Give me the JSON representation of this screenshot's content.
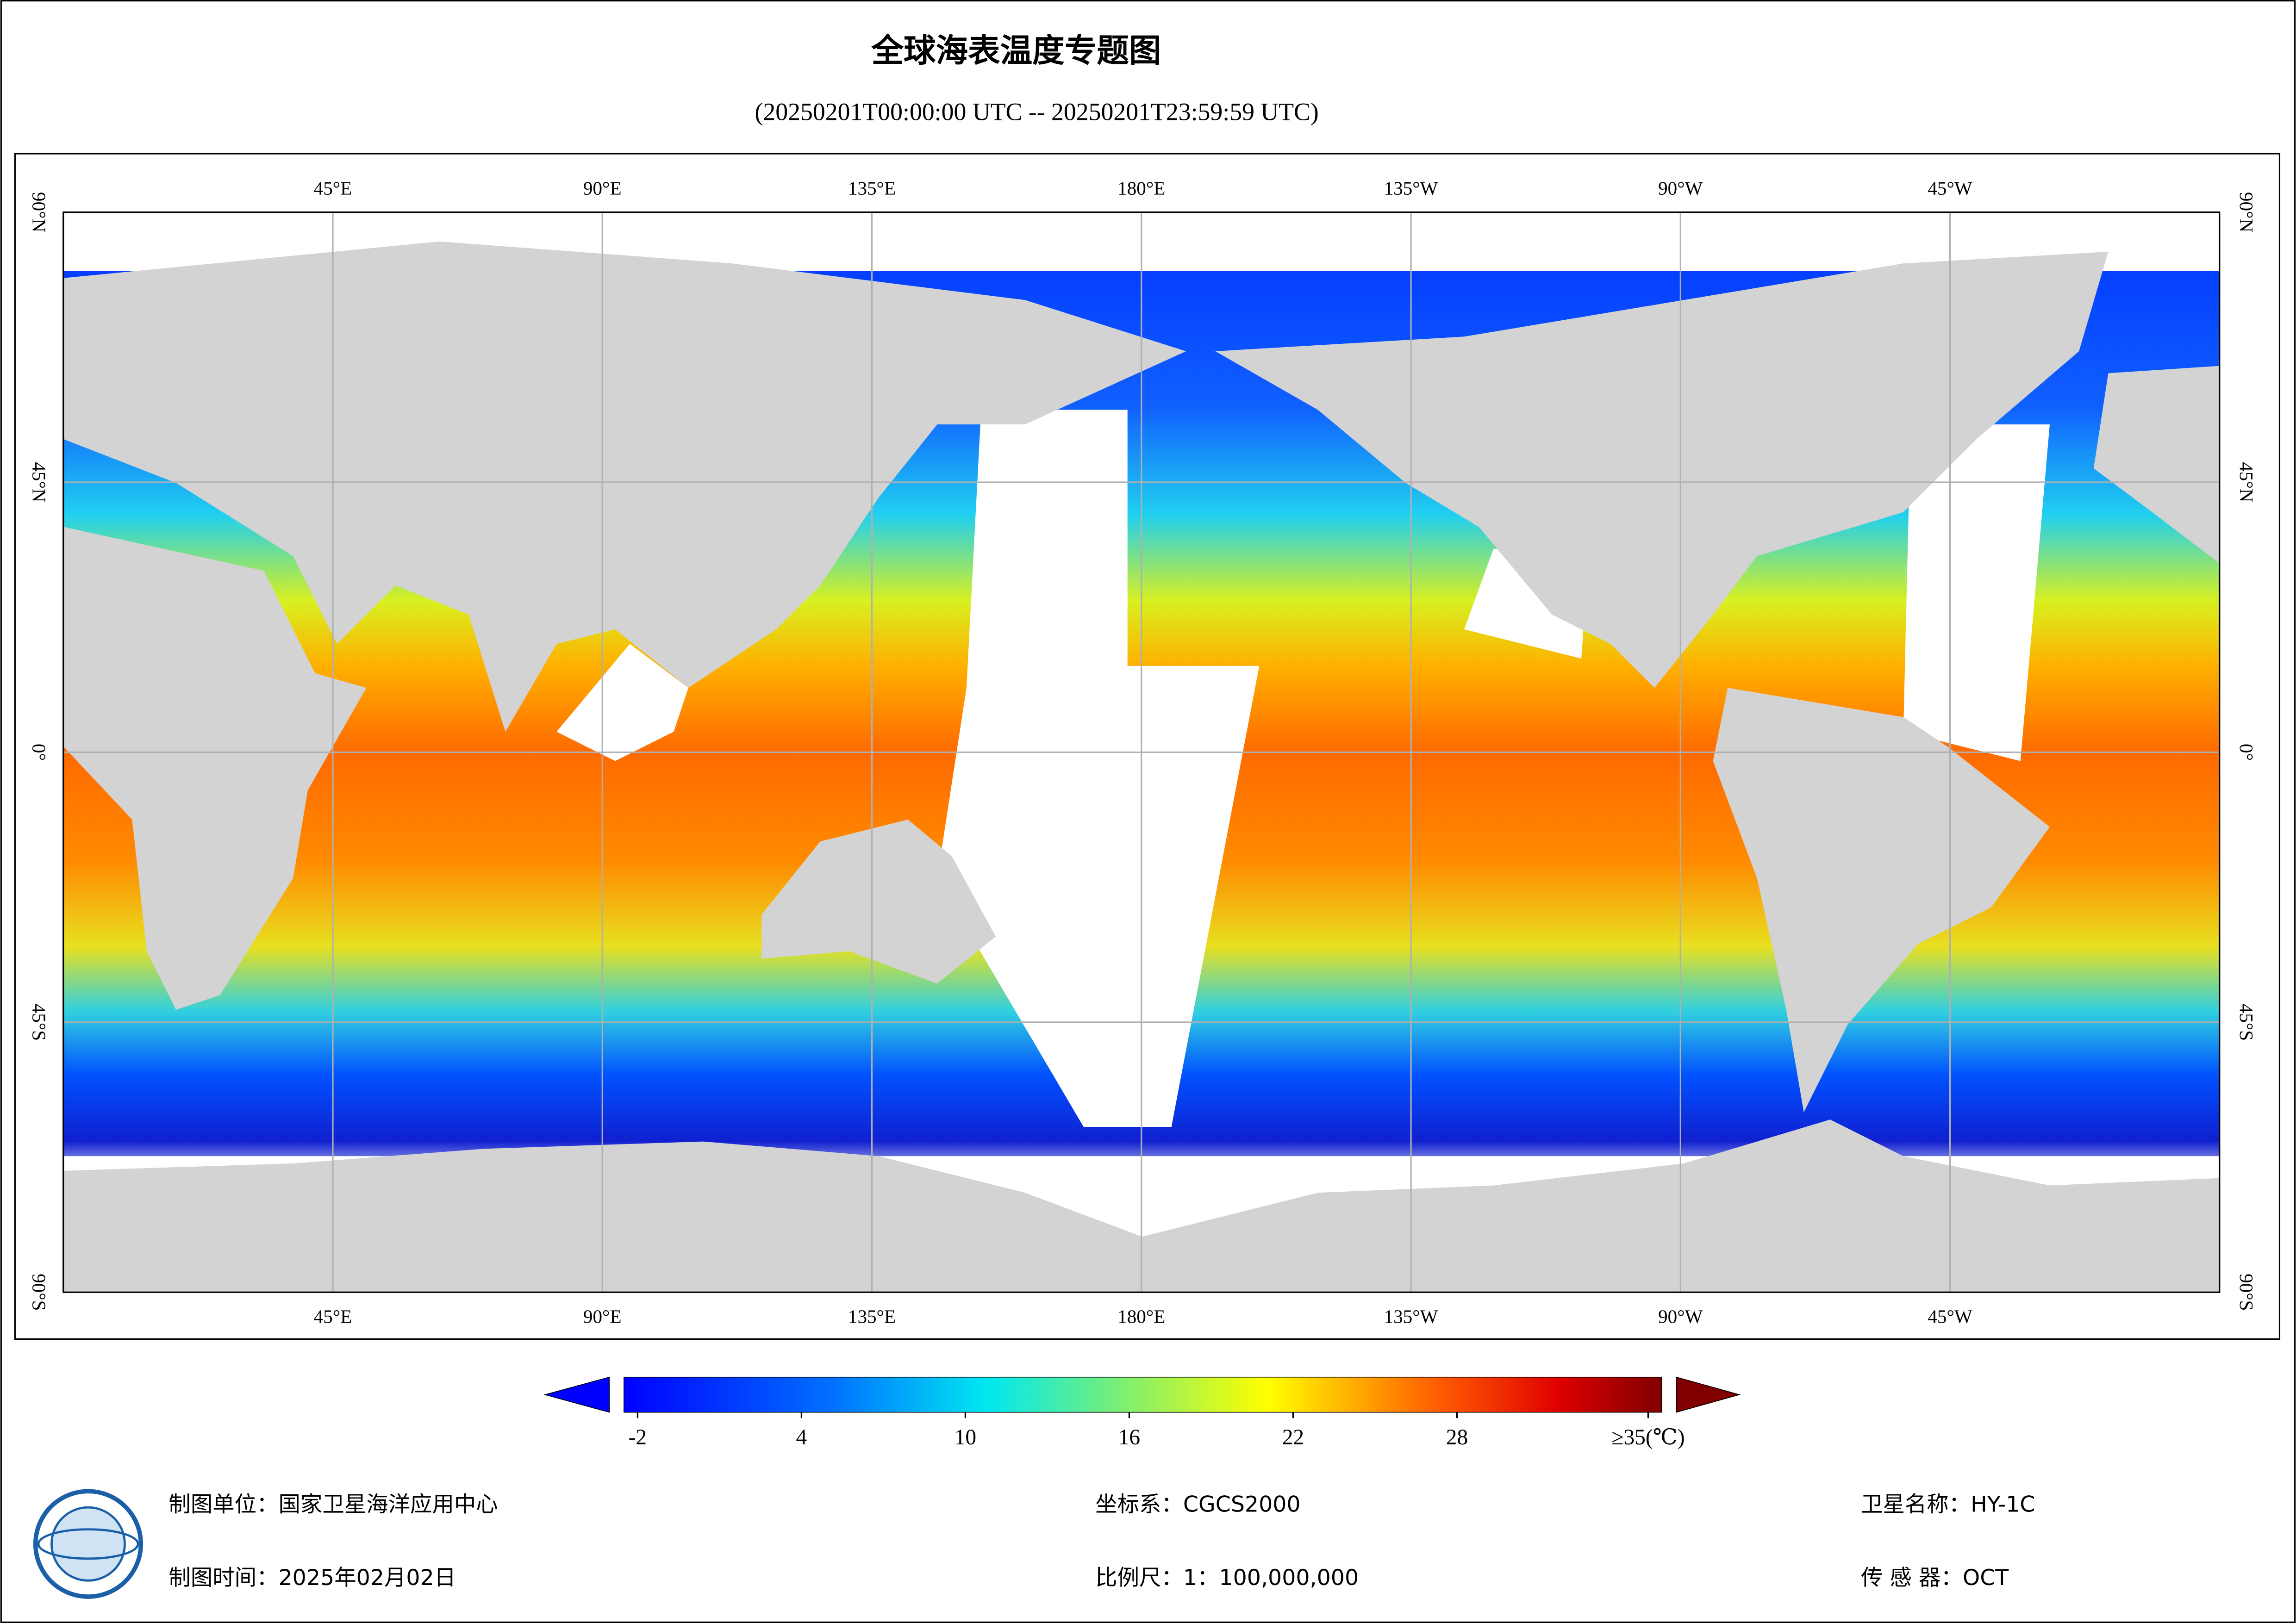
{
  "header": {
    "title": "全球海表温度专题图",
    "subtitle": "(20250201T00:00:00 UTC -- 20250201T23:59:59 UTC)"
  },
  "map": {
    "xlim": [
      0,
      360
    ],
    "ylim": [
      -90,
      90
    ],
    "lon_ticks": [
      {
        "value": 45,
        "label": "45°E"
      },
      {
        "value": 90,
        "label": "90°E"
      },
      {
        "value": 135,
        "label": "135°E"
      },
      {
        "value": 180,
        "label": "180°E"
      },
      {
        "value": 225,
        "label": "135°W"
      },
      {
        "value": 270,
        "label": "90°W"
      },
      {
        "value": 315,
        "label": "45°W"
      }
    ],
    "lat_ticks": [
      {
        "value": 90,
        "label": "90°N"
      },
      {
        "value": 45,
        "label": "45°N"
      },
      {
        "value": 0,
        "label": "0°"
      },
      {
        "value": -45,
        "label": "45°S"
      },
      {
        "value": -90,
        "label": "90°S"
      }
    ]
  },
  "colorbar": {
    "lim": [
      -2.5,
      35.5
    ],
    "ticks": [
      -2,
      4,
      10,
      16,
      22,
      28,
      {
        "value": 35,
        "label": "≥35(℃)"
      }
    ]
  },
  "footer": {
    "unit": "制图单位：国家卫星海洋应用中心",
    "time": "制图时间：2025年02月02日",
    "crs": "坐标系：CGCS2000",
    "scale": "比例尺：1：100,000,000",
    "satellite": "卫星名称：HY-1C",
    "sensor": "传 感 器：OCT"
  }
}
